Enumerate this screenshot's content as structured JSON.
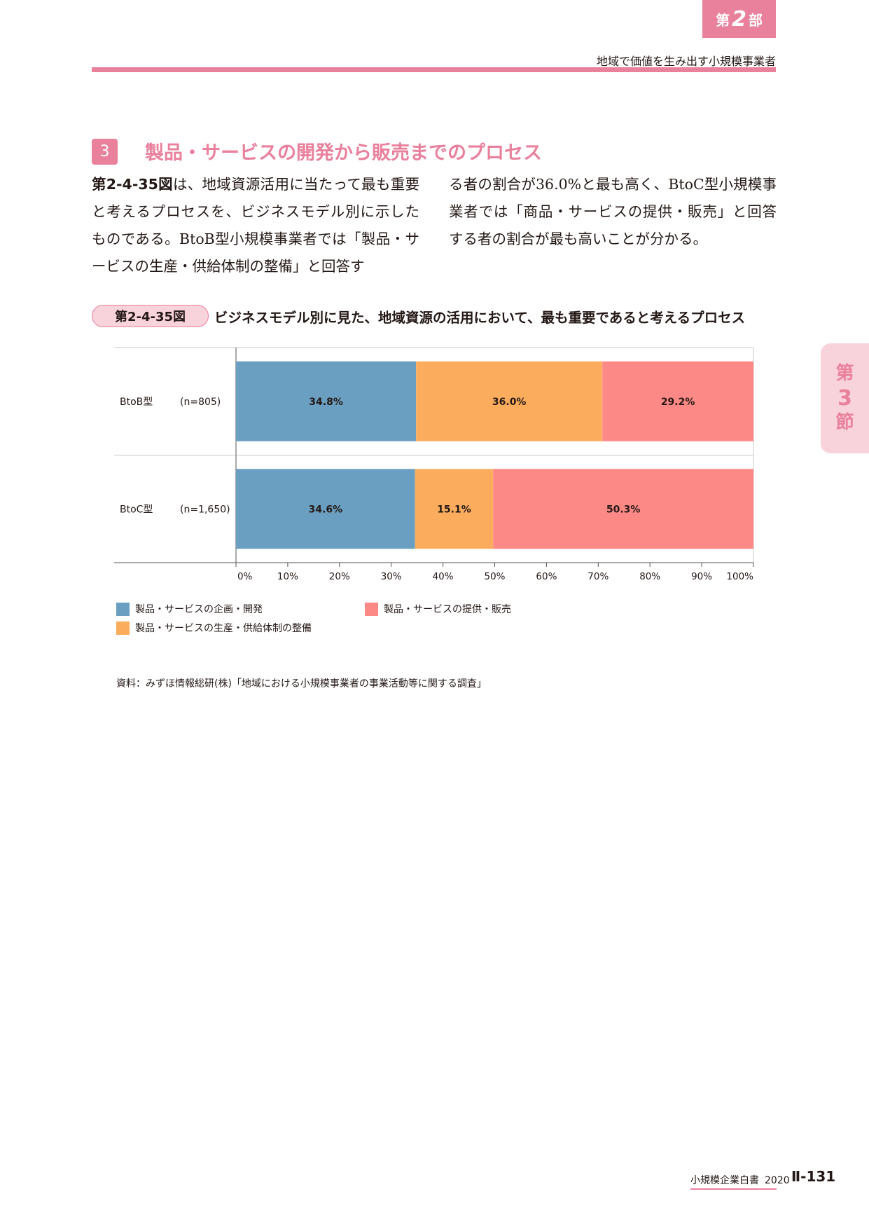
{
  "header": {
    "part_prefix": "第",
    "part_num": "2",
    "part_suffix": "部",
    "running_head": "地域で価値を生み出す小規模事業者"
  },
  "side_tab": {
    "prefix": "第",
    "num": "3",
    "suffix": "節"
  },
  "section": {
    "number": "3",
    "title": "製品・サービスの開発から販売までのプロセス"
  },
  "body": {
    "figref": "第2-4-35図",
    "left_rest": "は、地域資源活用に当たって最も重要と考えるプロセスを、ビジネスモデル別に示したものである。BtoB型小規模事業者では「製品・サービスの生産・供給体制の整備」と回答す",
    "right": "る者の割合が36.0%と最も高く、BtoC型小規模事業者では「商品・サービスの提供・販売」と回答する者の割合が最も高いことが分かる。"
  },
  "figure": {
    "label": "第2-4-35図",
    "title": "ビジネスモデル別に見た、地域資源の活用において、最も重要であると考えるプロセス"
  },
  "chart_data": {
    "type": "bar",
    "orientation": "horizontal",
    "stacked": true,
    "categories": [
      "BtoB型",
      "BtoC型"
    ],
    "category_n": [
      "(n=805)",
      "(n=1,650)"
    ],
    "series": [
      {
        "name": "製品・サービスの企画・開発",
        "color": "#6a9fc1",
        "values": [
          34.8,
          34.6
        ]
      },
      {
        "name": "製品・サービスの生産・供給体制の整備",
        "color": "#fbad5d",
        "values": [
          36.0,
          15.1
        ]
      },
      {
        "name": "製品・サービスの提供・販売",
        "color": "#fd8987",
        "values": [
          29.2,
          50.3
        ]
      }
    ],
    "xlim": [
      0,
      100
    ],
    "xticks": [
      "0%",
      "10%",
      "20%",
      "30%",
      "40%",
      "50%",
      "60%",
      "70%",
      "80%",
      "90%",
      "100%"
    ],
    "unit": "%",
    "legend_position": "bottom"
  },
  "source": "資料：みずほ情報総研(株)「地域における小規模事業者の事業活動等に関する調査」",
  "footer": {
    "title": "小規模企業白書",
    "year": "2020",
    "page": "Ⅱ-131"
  }
}
